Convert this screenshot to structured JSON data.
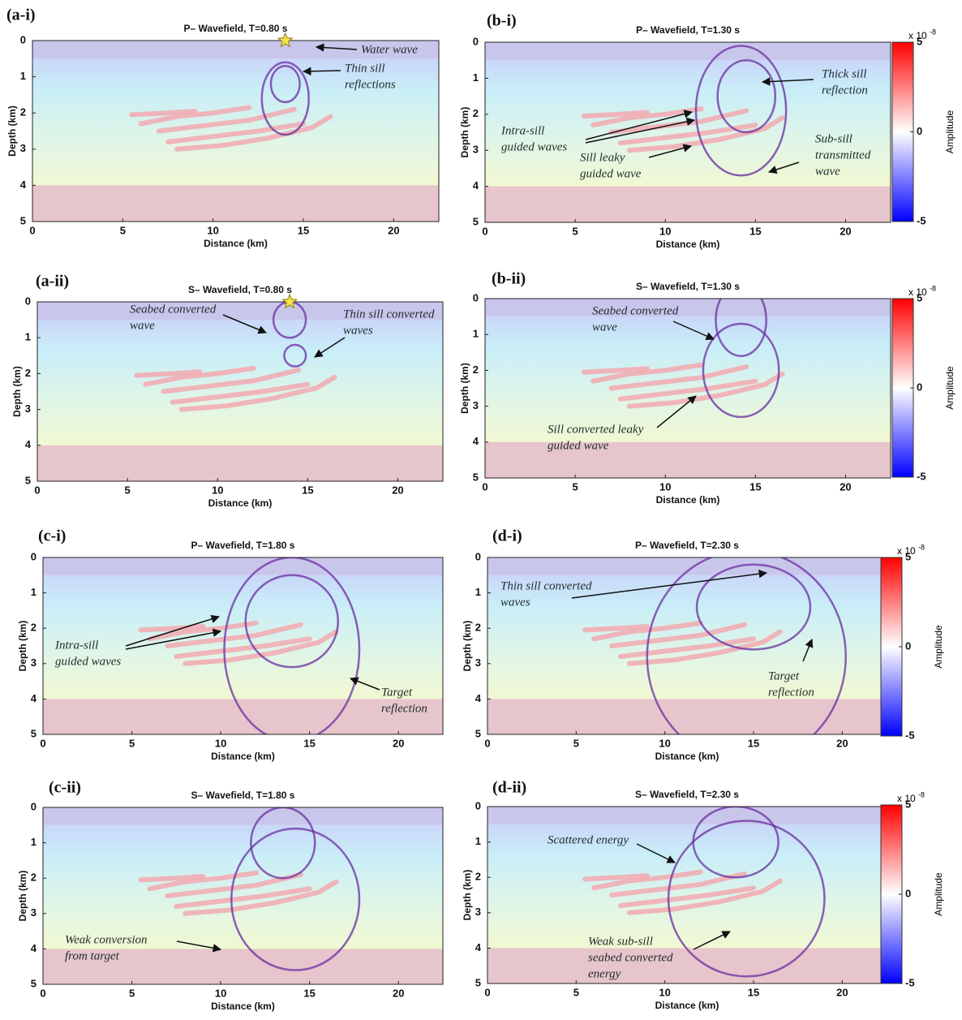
{
  "panels": [
    {
      "label": "(a-i)",
      "title": "P– Wavefield, T=0.80 s",
      "xlabel": "Distance (km)",
      "ylabel": "Depth (km)",
      "xlim": [
        0,
        22.5
      ],
      "ylim": [
        0,
        5
      ],
      "xticks": [
        0,
        5,
        10,
        15,
        20
      ],
      "yticks": [
        0,
        1,
        2,
        3,
        4,
        5
      ],
      "annotations": [
        [
          "Water wave"
        ],
        [
          "Thin sill",
          "reflections"
        ]
      ]
    },
    {
      "label": "(b-i)",
      "title": "P– Wavefield, T=1.30 s",
      "xlabel": "Distance (km)",
      "ylabel": "Depth (km)",
      "xlim": [
        0,
        22.5
      ],
      "ylim": [
        0,
        5
      ],
      "xticks": [
        0,
        5,
        10,
        15,
        20
      ],
      "yticks": [
        0,
        1,
        2,
        3,
        4,
        5
      ],
      "annotations": [
        [
          "Thick sill",
          "reflection"
        ],
        [
          "Intra-sill",
          "guided waves"
        ],
        [
          "Sill leaky",
          "guided wave"
        ],
        [
          "Sub-sill",
          "transmitted",
          "wave"
        ]
      ]
    },
    {
      "label": "(a-ii)",
      "title": "S– Wavefield, T=0.80 s",
      "xlabel": "Distance (km)",
      "ylabel": "Depth (km)",
      "xlim": [
        0,
        22.5
      ],
      "ylim": [
        0,
        5
      ],
      "xticks": [
        0,
        5,
        10,
        15,
        20
      ],
      "yticks": [
        0,
        1,
        2,
        3,
        4,
        5
      ],
      "annotations": [
        [
          "Seabed converted",
          "wave"
        ],
        [
          "Thin sill converted",
          "waves"
        ]
      ]
    },
    {
      "label": "(b-ii)",
      "title": "S– Wavefield, T=1.30 s",
      "xlabel": "Distance (km)",
      "ylabel": "Depth (km)",
      "xlim": [
        0,
        22.5
      ],
      "ylim": [
        0,
        5
      ],
      "xticks": [
        0,
        5,
        10,
        15,
        20
      ],
      "yticks": [
        0,
        1,
        2,
        3,
        4,
        5
      ],
      "annotations": [
        [
          "Seabed converted",
          "wave"
        ],
        [
          "Sill converted leaky",
          "guided wave"
        ]
      ]
    },
    {
      "label": "(c-i)",
      "title": "P– Wavefield, T=1.80 s",
      "xlabel": "Distance (km)",
      "ylabel": "Depth (km)",
      "xlim": [
        0,
        22.5
      ],
      "ylim": [
        0,
        5
      ],
      "xticks": [
        0,
        5,
        10,
        15,
        20
      ],
      "yticks": [
        0,
        1,
        2,
        3,
        4,
        5
      ],
      "annotations": [
        [
          "Intra-sill",
          "guided waves"
        ],
        [
          "Target",
          "reflection"
        ]
      ]
    },
    {
      "label": "(d-i)",
      "title": "P– Wavefield, T=2.30 s",
      "xlabel": "Distance (km)",
      "ylabel": "Depth (km)",
      "xlim": [
        0,
        22.5
      ],
      "ylim": [
        0,
        5
      ],
      "xticks": [
        0,
        5,
        10,
        15,
        20
      ],
      "yticks": [
        0,
        1,
        2,
        3,
        4,
        5
      ],
      "annotations": [
        [
          "Thin sill converted",
          "waves"
        ],
        [
          "Target",
          "reflection"
        ]
      ]
    },
    {
      "label": "(c-ii)",
      "title": "S– Wavefield, T=1.80 s",
      "xlabel": "Distance (km)",
      "ylabel": "Depth (km)",
      "xlim": [
        0,
        22.5
      ],
      "ylim": [
        0,
        5
      ],
      "xticks": [
        0,
        5,
        10,
        15,
        20
      ],
      "yticks": [
        0,
        1,
        2,
        3,
        4,
        5
      ],
      "annotations": [
        [
          "Weak conversion",
          "from target"
        ]
      ]
    },
    {
      "label": "(d-ii)",
      "title": "S– Wavefield, T=2.30 s",
      "xlabel": "Distance (km)",
      "ylabel": "Depth (km)",
      "xlim": [
        0,
        22.5
      ],
      "ylim": [
        0,
        5
      ],
      "xticks": [
        0,
        5,
        10,
        15,
        20
      ],
      "yticks": [
        0,
        1,
        2,
        3,
        4,
        5
      ],
      "annotations": [
        [
          "Scattered energy"
        ],
        [
          "Weak sub-sill",
          "seabed converted",
          "energy"
        ]
      ]
    }
  ],
  "colorbar": {
    "label": "Amplitude",
    "scale_base": "x 10",
    "scale_exponent": "-8",
    "lim": [
      -5,
      5
    ],
    "ticks": [
      5,
      0,
      -5
    ]
  }
}
